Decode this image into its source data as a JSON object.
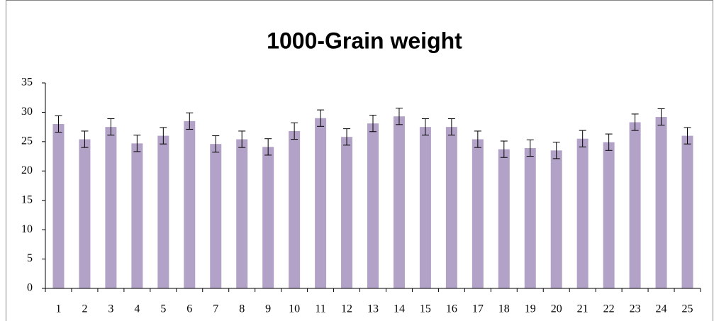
{
  "chart_data": {
    "type": "bar",
    "title": "1000-Grain weight",
    "categories": [
      "1",
      "2",
      "3",
      "4",
      "5",
      "6",
      "7",
      "8",
      "9",
      "10",
      "11",
      "12",
      "13",
      "14",
      "15",
      "16",
      "17",
      "18",
      "19",
      "20",
      "21",
      "22",
      "23",
      "24",
      "25"
    ],
    "values": [
      28,
      25.4,
      27.5,
      24.7,
      26,
      28.5,
      24.6,
      25.4,
      24.1,
      26.8,
      29,
      25.8,
      28.1,
      29.3,
      27.5,
      27.5,
      25.4,
      23.7,
      23.9,
      23.5,
      25.5,
      24.9,
      28.3,
      29.2,
      26
    ],
    "errors": [
      1.4,
      1.4,
      1.4,
      1.4,
      1.4,
      1.4,
      1.4,
      1.4,
      1.4,
      1.4,
      1.4,
      1.4,
      1.4,
      1.4,
      1.4,
      1.4,
      1.4,
      1.4,
      1.4,
      1.4,
      1.4,
      1.4,
      1.4,
      1.4,
      1.4
    ],
    "color": "#b3a2c7",
    "ylim": [
      0,
      35
    ],
    "yticks": [
      0,
      5,
      10,
      15,
      20,
      25,
      30,
      35
    ],
    "grid": false
  }
}
